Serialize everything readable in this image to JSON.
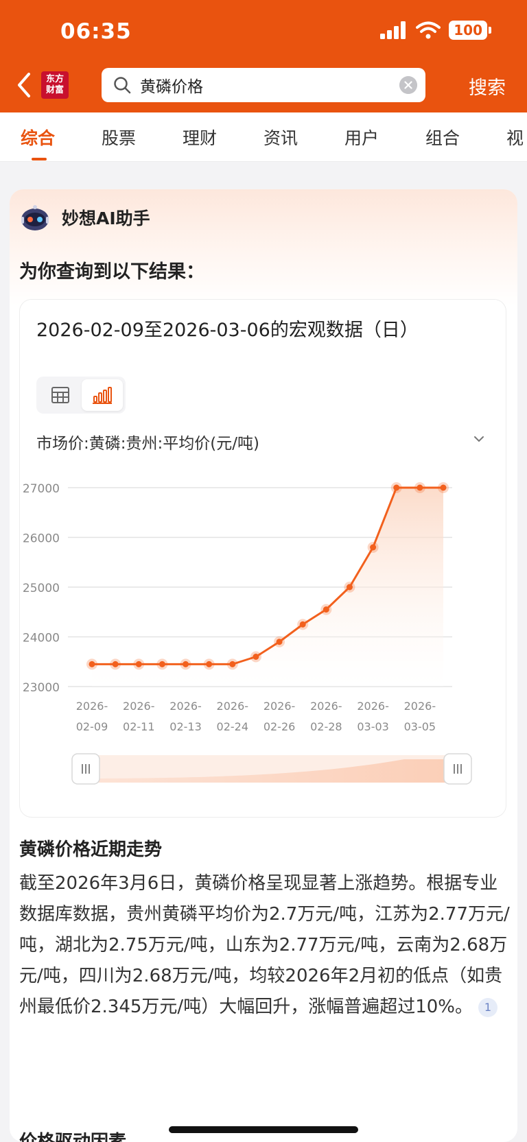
{
  "status_bar": {
    "time": "06:35",
    "battery": "100"
  },
  "header": {
    "logo_text": [
      "东方",
      "财富"
    ],
    "search_query": "黄磷价格",
    "search_button": "搜索"
  },
  "tabs": [
    {
      "label": "综合",
      "active": true
    },
    {
      "label": "股票",
      "active": false
    },
    {
      "label": "理财",
      "active": false
    },
    {
      "label": "资讯",
      "active": false
    },
    {
      "label": "用户",
      "active": false
    },
    {
      "label": "组合",
      "active": false
    },
    {
      "label": "视",
      "active": false
    }
  ],
  "ai": {
    "name": "妙想AI助手",
    "intro": "为你查询到以下结果："
  },
  "chart_card": {
    "title": "2026-02-09至2026-03-06的宏观数据（日）",
    "series_label": "市场价:黄磷:贵州:平均价(元/吨)"
  },
  "chart_data": {
    "type": "area",
    "title": "2026-02-09至2026-03-06的宏观数据（日）",
    "series": [
      {
        "name": "市场价:黄磷:贵州:平均价(元/吨)",
        "values": [
          23450,
          23450,
          23450,
          23450,
          23450,
          23450,
          23450,
          23600,
          23900,
          24250,
          24550,
          25000,
          25800,
          27000,
          27000,
          27000
        ]
      }
    ],
    "x_tick_labels": [
      [
        "2026-",
        "02-09"
      ],
      [
        "2026-",
        "02-11"
      ],
      [
        "2026-",
        "02-13"
      ],
      [
        "2026-",
        "02-24"
      ],
      [
        "2026-",
        "02-26"
      ],
      [
        "2026-",
        "02-28"
      ],
      [
        "2026-",
        "03-03"
      ],
      [
        "2026-",
        "03-05"
      ]
    ],
    "y_ticks": [
      23000,
      24000,
      25000,
      26000,
      27000
    ],
    "ylim": [
      23000,
      27000
    ],
    "grid": true,
    "color": "#f2601d"
  },
  "analysis": {
    "title": "黄磷价格近期走势",
    "body": "截至2026年3月6日，黄磷价格呈现显著上涨趋势。根据专业数据库数据，贵州黄磷平均价为2.7万元/吨，江苏为2.77万元/吨，湖北为2.75万元/吨，山东为2.77万元/吨，云南为2.68万元/吨，四川为2.68万元/吨，均较2026年2月初的低点（如贵州最低价2.345万元/吨）大幅回升，涨幅普遍超过10%。",
    "citation": "1",
    "next_title": "价格驱动因素"
  }
}
